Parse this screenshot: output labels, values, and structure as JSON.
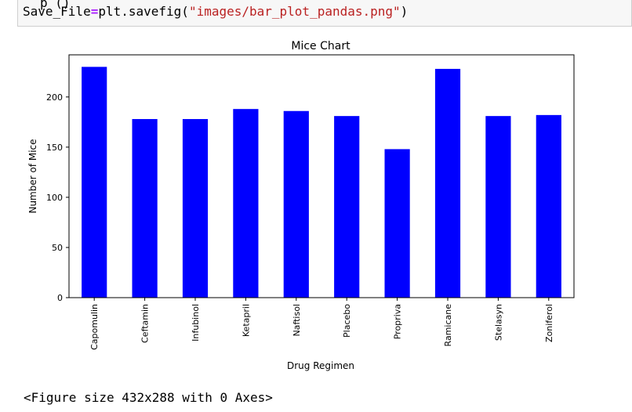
{
  "code": {
    "cut_text": "p      ()",
    "lhs": "Save_File",
    "op": "=",
    "call": "plt.savefig(",
    "arg": "\"images/bar_plot_pandas.png\"",
    "close": ")"
  },
  "output": {
    "figure_text": "<Figure size 432x288 with 0 Axes>"
  },
  "colors": {
    "bar": "#0000ff"
  },
  "chart_data": {
    "type": "bar",
    "title": "Mice Chart",
    "xlabel": "Drug Regimen",
    "ylabel": "Number of Mice",
    "categories": [
      "Capomulin",
      "Ceftamin",
      "Infubinol",
      "Ketapril",
      "Naftisol",
      "Placebo",
      "Propriva",
      "Ramicane",
      "Stelasyn",
      "Zoniferol"
    ],
    "values": [
      230,
      178,
      178,
      188,
      186,
      181,
      148,
      228,
      181,
      182
    ],
    "ylim": [
      0,
      242
    ],
    "yticks": [
      0,
      50,
      100,
      150,
      200
    ],
    "grid": false,
    "legend": "none"
  }
}
